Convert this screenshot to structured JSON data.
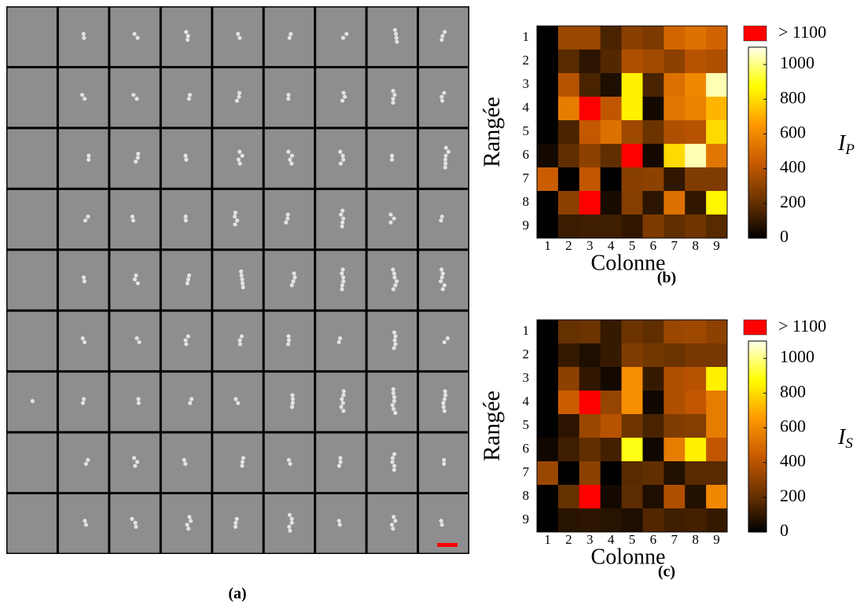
{
  "image_panel": {
    "label": "(a)"
  },
  "chart_data": [
    {
      "type": "heatmap",
      "xlabel": "Colonne",
      "ylabel": "Rangée",
      "zlabel": "I",
      "zlabel_sub": "P",
      "panel_label": "(b)",
      "xcategories": [
        "1",
        "2",
        "3",
        "4",
        "5",
        "6",
        "7",
        "8",
        "9"
      ],
      "ycategories": [
        "1",
        "2",
        "3",
        "4",
        "5",
        "6",
        "7",
        "8",
        "9"
      ],
      "values": [
        [
          0,
          330,
          330,
          150,
          290,
          260,
          480,
          520,
          470
        ],
        [
          0,
          180,
          90,
          170,
          380,
          350,
          300,
          400,
          380
        ],
        [
          0,
          400,
          150,
          60,
          850,
          150,
          520,
          600,
          1050
        ],
        [
          0,
          560,
          1150,
          420,
          850,
          40,
          540,
          580,
          720
        ],
        [
          0,
          150,
          430,
          520,
          340,
          220,
          380,
          400,
          800
        ],
        [
          40,
          200,
          300,
          200,
          1150,
          40,
          800,
          1050,
          540
        ],
        [
          450,
          0,
          420,
          0,
          290,
          300,
          100,
          270,
          270
        ],
        [
          0,
          300,
          1150,
          50,
          280,
          90,
          520,
          100,
          860
        ],
        [
          0,
          120,
          130,
          130,
          100,
          260,
          200,
          230,
          180
        ]
      ],
      "clim": [
        0,
        1100
      ],
      "cticks": [
        0,
        200,
        400,
        600,
        800,
        1000
      ],
      "colormap": [
        "#000000",
        "#6b3300",
        "#c85a00",
        "#ff9900",
        "#ffff00",
        "#ffffe8"
      ],
      "over_color": "#ff0000",
      "over_label": "> 1100"
    },
    {
      "type": "heatmap",
      "xlabel": "Colonne",
      "ylabel": "Rangée",
      "zlabel": "I",
      "zlabel_sub": "S",
      "panel_label": "(c)",
      "xcategories": [
        "1",
        "2",
        "3",
        "4",
        "5",
        "6",
        "7",
        "8",
        "9"
      ],
      "ycategories": [
        "1",
        "2",
        "3",
        "4",
        "5",
        "6",
        "7",
        "8",
        "9"
      ],
      "values": [
        [
          0,
          210,
          220,
          110,
          220,
          200,
          330,
          340,
          300
        ],
        [
          0,
          110,
          60,
          110,
          270,
          240,
          220,
          250,
          250
        ],
        [
          0,
          300,
          100,
          40,
          620,
          110,
          380,
          400,
          850
        ],
        [
          0,
          450,
          1150,
          320,
          620,
          30,
          380,
          420,
          560
        ],
        [
          0,
          90,
          330,
          400,
          230,
          150,
          270,
          280,
          560
        ],
        [
          30,
          130,
          200,
          140,
          900,
          30,
          560,
          850,
          420
        ],
        [
          330,
          0,
          300,
          0,
          180,
          200,
          70,
          180,
          180
        ],
        [
          0,
          210,
          1150,
          40,
          190,
          60,
          380,
          70,
          600
        ],
        [
          0,
          80,
          90,
          80,
          60,
          170,
          130,
          140,
          110
        ]
      ],
      "clim": [
        0,
        1100
      ],
      "cticks": [
        0,
        200,
        400,
        600,
        800,
        1000
      ],
      "colormap": [
        "#000000",
        "#6b3300",
        "#c85a00",
        "#ff9900",
        "#ffff00",
        "#ffffe8"
      ],
      "over_color": "#ff0000",
      "over_label": "> 1100"
    }
  ]
}
